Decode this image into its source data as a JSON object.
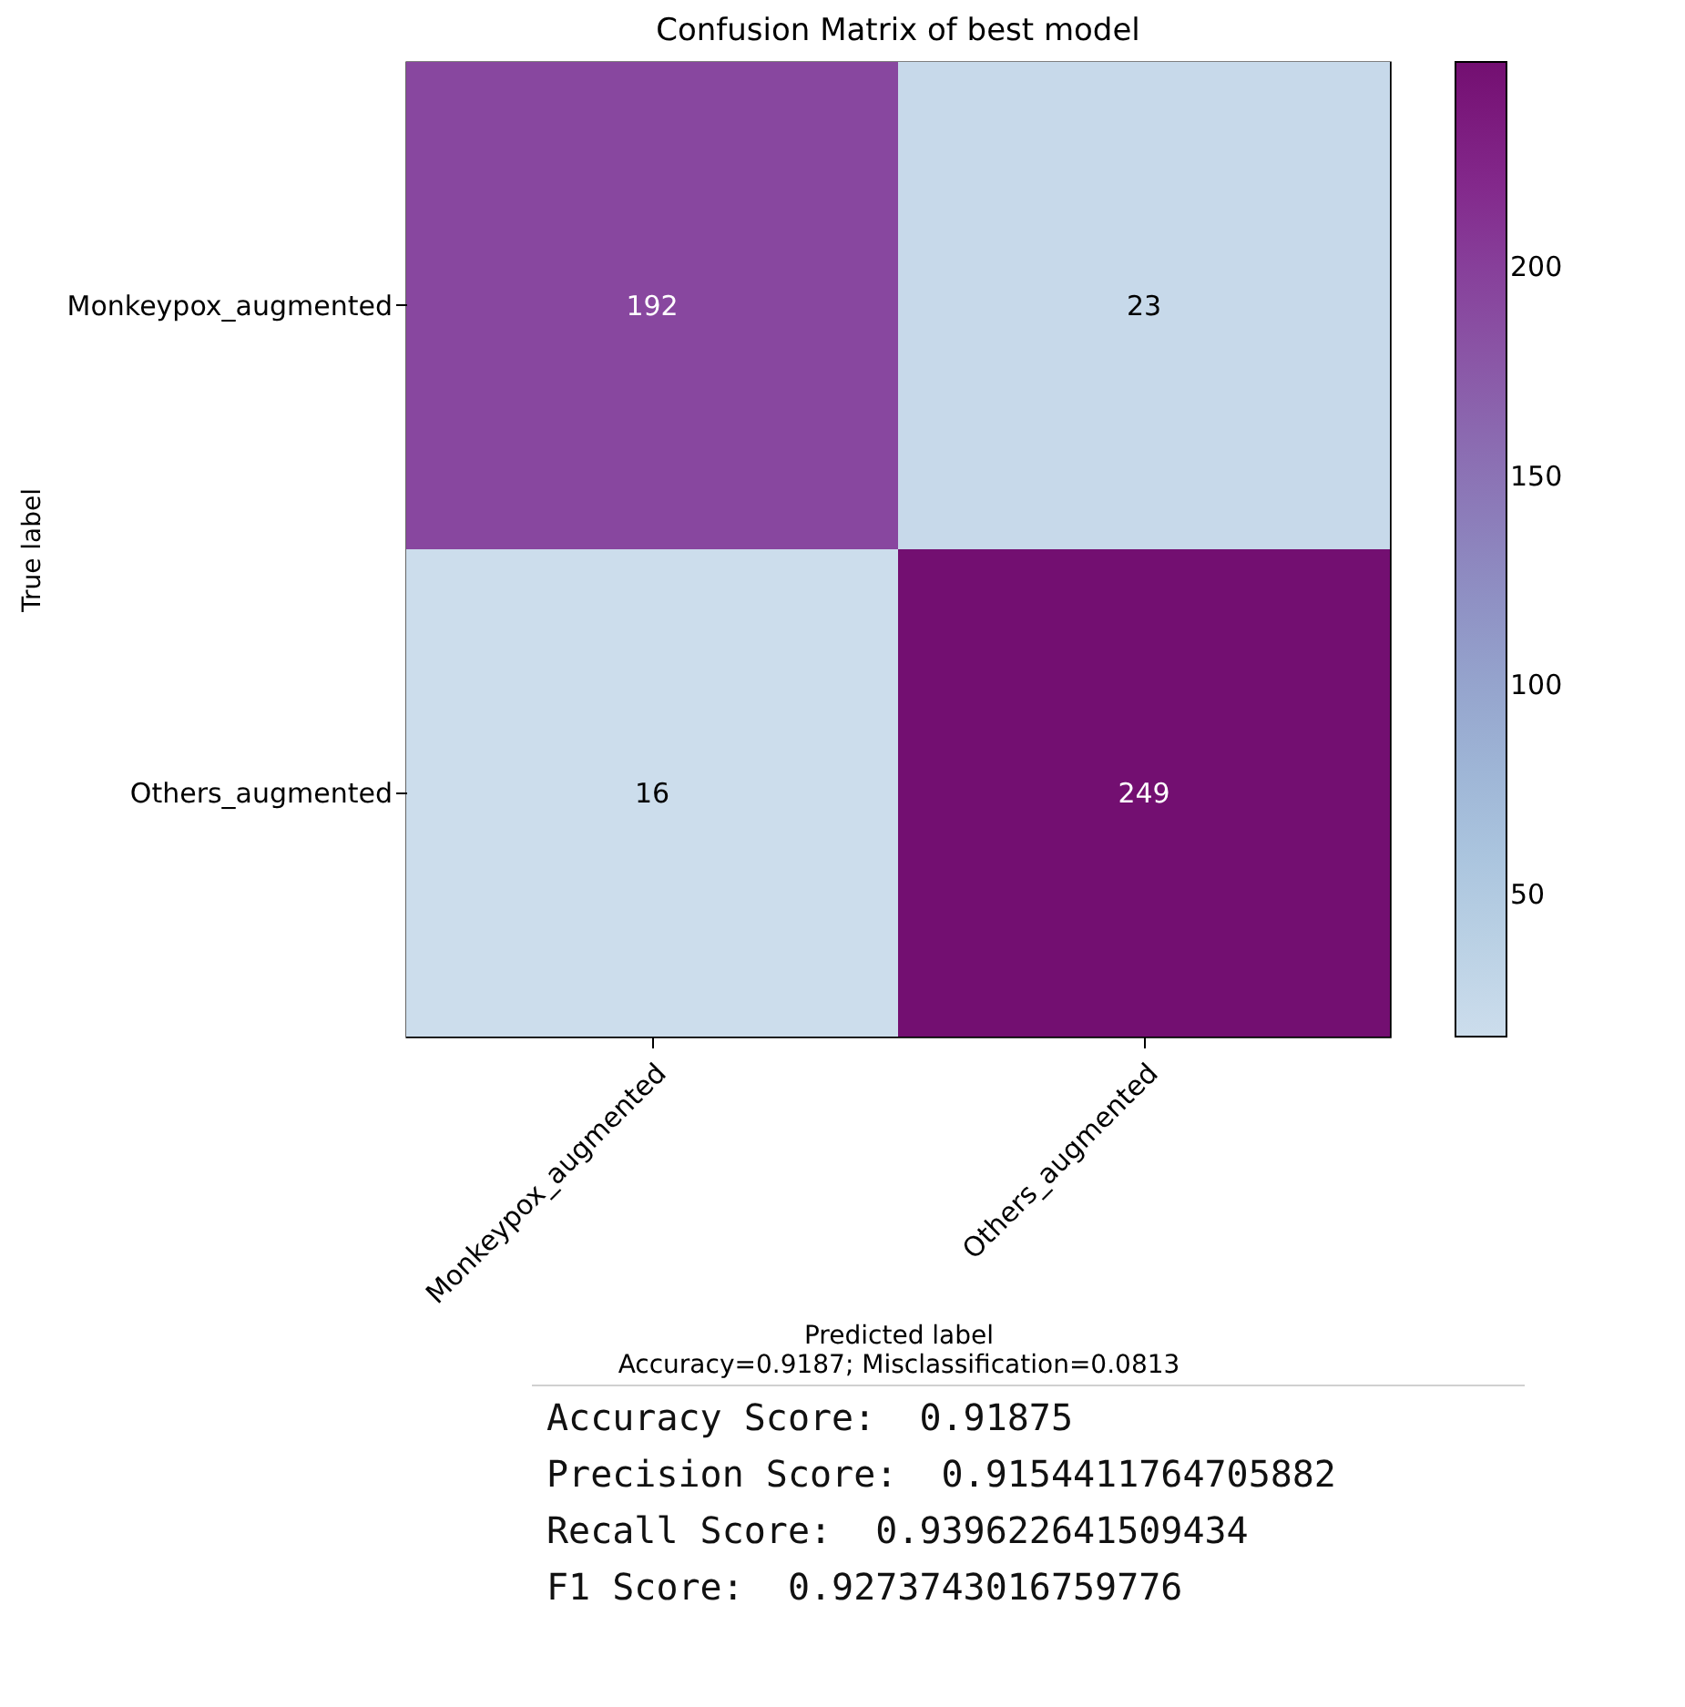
{
  "chart_data": {
    "type": "heatmap",
    "title": "Confusion Matrix of best model",
    "xlabel": "Predicted label",
    "ylabel": "True label",
    "categories": [
      "Monkeypox_augmented",
      "Others_augmented"
    ],
    "y_categories": [
      "Monkeypox_augmented",
      "Others_augmented"
    ],
    "cells": [
      [
        192,
        23
      ],
      [
        16,
        249
      ]
    ],
    "data_labels": true,
    "clim": [
      16,
      249
    ],
    "cticks": [
      50,
      100,
      150,
      200
    ],
    "annotations": [
      "Accuracy=0.9187; Misclassification=0.0813",
      "Accuracy Score:  0.91875",
      "Precision Score:  0.9154411764705882",
      "Recall Score:  0.939622641509434",
      "F1 Score:  0.9273743016759776"
    ]
  }
}
